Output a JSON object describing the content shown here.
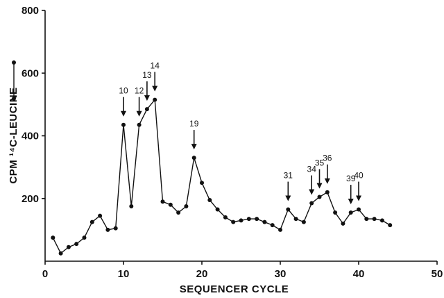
{
  "chart_data": {
    "type": "line",
    "xlabel": "SEQUENCER CYCLE",
    "ylabel": "CPM ¹⁴C-LEUCINE",
    "xlim": [
      0,
      50
    ],
    "ylim": [
      0,
      800
    ],
    "xticks": [
      0,
      10,
      20,
      30,
      40,
      50
    ],
    "yticks": [
      200,
      400,
      600,
      800
    ],
    "x": [
      1,
      2,
      3,
      4,
      5,
      6,
      7,
      8,
      9,
      10,
      11,
      12,
      13,
      14,
      15,
      16,
      17,
      18,
      19,
      20,
      21,
      22,
      23,
      24,
      25,
      26,
      27,
      28,
      29,
      30,
      31,
      32,
      33,
      34,
      35,
      36,
      37,
      38,
      39,
      40,
      41,
      42,
      43,
      44
    ],
    "values": [
      75,
      25,
      45,
      55,
      75,
      125,
      145,
      100,
      105,
      435,
      175,
      435,
      485,
      515,
      190,
      180,
      155,
      175,
      330,
      250,
      195,
      165,
      140,
      125,
      130,
      135,
      135,
      125,
      115,
      100,
      165,
      135,
      125,
      185,
      205,
      220,
      155,
      120,
      155,
      165,
      135,
      135,
      130,
      115
    ],
    "annotations": [
      {
        "label": "10",
        "x": 10
      },
      {
        "label": "12",
        "x": 12
      },
      {
        "label": "13",
        "x": 13
      },
      {
        "label": "14",
        "x": 14
      },
      {
        "label": "19",
        "x": 19
      },
      {
        "label": "31",
        "x": 31
      },
      {
        "label": "34",
        "x": 34
      },
      {
        "label": "35",
        "x": 35
      },
      {
        "label": "36",
        "x": 36
      },
      {
        "label": "39",
        "x": 39
      },
      {
        "label": "40",
        "x": 40
      }
    ]
  }
}
